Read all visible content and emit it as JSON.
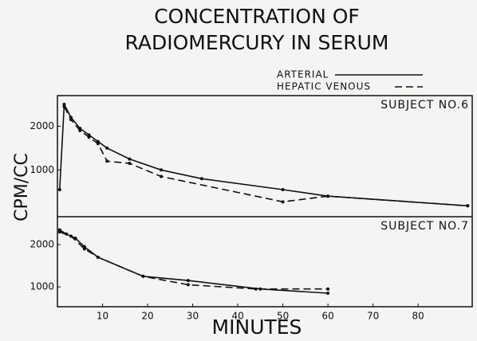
{
  "chart_data": [
    {
      "type": "line",
      "title": [
        "CONCENTRATION OF",
        "RADIOMERCURY IN SERUM"
      ],
      "ylabel": "CPM/CC",
      "annotation": "SUBJECT NO.6",
      "xlim": [
        0,
        92
      ],
      "ylim": [
        -70,
        2700
      ],
      "yticks": [
        1000,
        2000
      ],
      "series": [
        {
          "name": "ARTERIAL",
          "color": "#111111",
          "style": "solid",
          "x": [
            0.5,
            1.5,
            3,
            5,
            7,
            9,
            11,
            16,
            23,
            32,
            50,
            60,
            91
          ],
          "values": [
            550,
            2500,
            2200,
            1950,
            1800,
            1650,
            1500,
            1250,
            1000,
            800,
            550,
            400,
            180
          ]
        },
        {
          "name": "HEPATIC VENOUS",
          "color": "#111111",
          "style": "dashed",
          "x": [
            1.5,
            3,
            5,
            7,
            9,
            11,
            16,
            23,
            50,
            60,
            91
          ],
          "values": [
            2450,
            2150,
            1900,
            1750,
            1600,
            1200,
            1150,
            850,
            270,
            400,
            180
          ]
        }
      ]
    },
    {
      "type": "line",
      "xlabel": "MINUTES",
      "annotation": "SUBJECT NO.7",
      "xlim": [
        0,
        92
      ],
      "xticks": [
        10,
        20,
        30,
        40,
        50,
        60,
        70,
        80
      ],
      "ylim": [
        530,
        2660
      ],
      "yticks": [
        1000,
        2000
      ],
      "series": [
        {
          "color": "#111111",
          "style": "solid",
          "x": [
            0.5,
            2,
            4,
            6,
            9,
            19,
            29,
            45,
            60
          ],
          "values": [
            2350,
            2250,
            2150,
            1950,
            1700,
            1250,
            1150,
            950,
            850
          ]
        },
        {
          "color": "#111111",
          "style": "dashed",
          "x": [
            0.5,
            3,
            6,
            9,
            19,
            29,
            44,
            60
          ],
          "values": [
            2300,
            2200,
            1900,
            1700,
            1250,
            1050,
            950,
            950
          ]
        }
      ]
    }
  ]
}
